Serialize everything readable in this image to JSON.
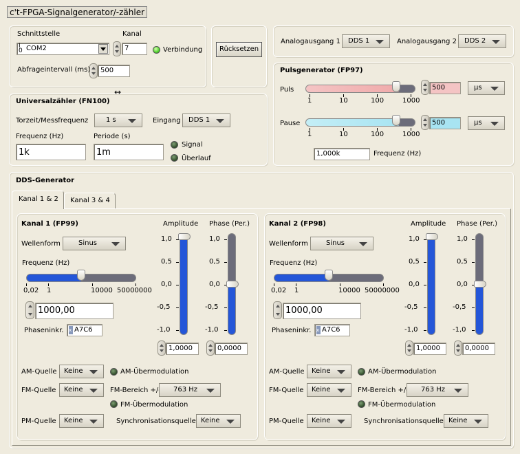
{
  "window": {
    "title": "c't-FPGA-Signalgenerator/-zähler"
  },
  "interface": {
    "schnittstelle_label": "Schnittstelle",
    "port_value": "COM2",
    "port_icon": "serial-port-icon",
    "kanal_label": "Kanal",
    "kanal_value": "7",
    "connection_label": "Verbindung",
    "connection_state": "on",
    "poll_label": "Abfrageintervall (ms)",
    "poll_value": "500",
    "reset_label": "Rücksetzen"
  },
  "analog": {
    "out1_label": "Analogausgang 1",
    "out1_value": "DDS 1",
    "out2_label": "Analogausgang 2",
    "out2_value": "DDS 2"
  },
  "counter": {
    "title": "Universalzähler (FN100)",
    "gate_label": "Torzeit/Messfrequenz",
    "gate_value": "1 s",
    "input_label": "Eingang",
    "input_value": "DDS 1",
    "freq_label": "Frequenz (Hz)",
    "freq_value": "1k",
    "period_label": "Periode (s)",
    "period_value": "1m",
    "signal_label": "Signal",
    "overflow_label": "Überlauf"
  },
  "pulse": {
    "title": "Pulsgenerator (FP97)",
    "puls_label": "Puls",
    "puls_value": "500",
    "puls_unit": "µs",
    "puls_level": 0.9,
    "pause_label": "Pause",
    "pause_value": "500",
    "pause_unit": "µs",
    "pause_level": 0.9,
    "scale": [
      "1",
      "10",
      "100",
      "1000"
    ],
    "freq_value": "1,000k",
    "freq_label": "Frequenz (Hz)"
  },
  "dds": {
    "title": "DDS-Generator",
    "tabs": [
      "Kanal 1 & 2",
      "Kanal 3 & 4"
    ],
    "channels": [
      {
        "title": "Kanal 1 (FP99)",
        "waveform_label": "Wellenform",
        "waveform_value": "Sinus",
        "freq_label": "Frequenz (Hz)",
        "freq_scale": [
          "0,02",
          "1",
          "10000",
          "50000000"
        ],
        "freq_level": 0.5,
        "freq_value": "1000,00",
        "phase_inc_label": "Phaseninkr.",
        "phase_inc_value": "A7C6",
        "phase_inc_prefix": "x",
        "amplitude_label": "Amplitude",
        "phase_label": "Phase (Per.)",
        "v_scale": [
          "1,0",
          "0,5",
          "0,0",
          "-0,5",
          "-1,0"
        ],
        "amplitude_level": 1.0,
        "phase_level": 0.5,
        "amplitude_value": "1,0000",
        "phase_value": "0,0000",
        "am_label": "AM-Quelle",
        "am_value": "Keine",
        "am_over_label": "AM-Übermodulation",
        "fm_label": "FM-Quelle",
        "fm_value": "Keine",
        "fm_range_label": "FM-Bereich +/-",
        "fm_range_value": "763 Hz",
        "fm_over_label": "FM-Übermodulation",
        "pm_label": "PM-Quelle",
        "pm_value": "Keine",
        "sync_label": "Synchronisationsquelle",
        "sync_value": "Keine"
      },
      {
        "title": "Kanal 2 (FP98)",
        "waveform_label": "Wellenform",
        "waveform_value": "Sinus",
        "freq_label": "Frequenz (Hz)",
        "freq_scale": [
          "0,02",
          "1",
          "10000",
          "50000000"
        ],
        "freq_level": 0.5,
        "freq_value": "1000,00",
        "phase_inc_label": "Phaseninkr.",
        "phase_inc_value": "A7C6",
        "phase_inc_prefix": "x",
        "amplitude_label": "Amplitude",
        "phase_label": "Phase (Per.)",
        "v_scale": [
          "1,0",
          "0,5",
          "0,0",
          "-0,5",
          "-1,0"
        ],
        "amplitude_level": 1.0,
        "phase_level": 0.5,
        "amplitude_value": "1,0000",
        "phase_value": "0,0000",
        "am_label": "AM-Quelle",
        "am_value": "Keine",
        "am_over_label": "AM-Übermodulation",
        "fm_label": "FM-Quelle",
        "fm_value": "Keine",
        "fm_range_label": "FM-Bereich +/-",
        "fm_range_value": "763 Hz",
        "fm_over_label": "FM-Übermodulation",
        "pm_label": "PM-Quelle",
        "pm_value": "Keine",
        "sync_label": "Synchronisationsquelle",
        "sync_value": "Keine"
      }
    ]
  }
}
